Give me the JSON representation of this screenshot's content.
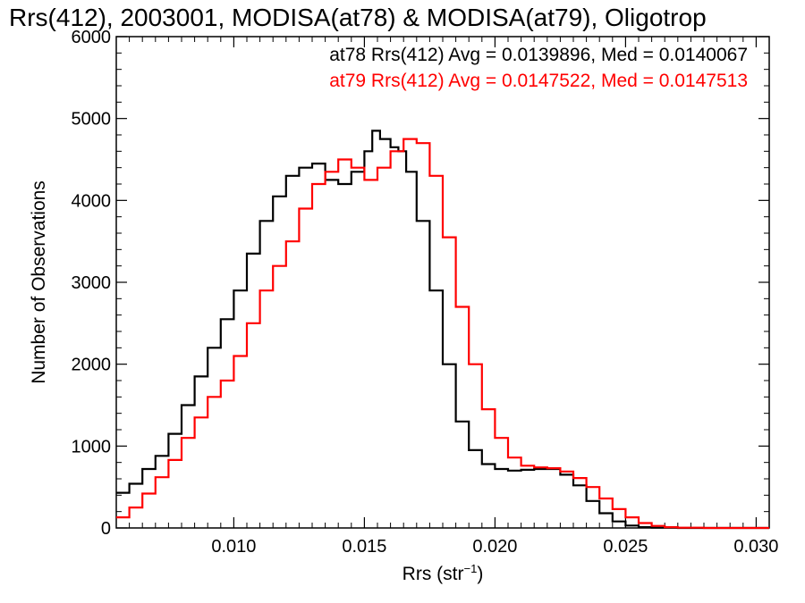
{
  "chart_data": {
    "type": "line",
    "title": "Rrs(412), 2003001, MODISA(at78) & MODISA(at79), Oligotrop",
    "xlabel": "Rrs (str",
    "xlabel_sup": "−1",
    "xlabel_close": ")",
    "ylabel": "Number of Observations",
    "xlim": [
      0.0055,
      0.0305
    ],
    "ylim": [
      0,
      6000
    ],
    "x_ticks": [
      0.01,
      0.015,
      0.02,
      0.025,
      0.03
    ],
    "x_tick_labels": [
      "0.010",
      "0.015",
      "0.020",
      "0.025",
      "0.030"
    ],
    "y_ticks": [
      0,
      1000,
      2000,
      3000,
      4000,
      5000,
      6000
    ],
    "y_tick_labels": [
      "0",
      "1000",
      "2000",
      "3000",
      "4000",
      "5000",
      "6000"
    ],
    "legend_position": "top-right",
    "series": [
      {
        "name": "at78 Rrs(412) Avg = 0.0139896, Med = 0.0140067",
        "color": "#000000",
        "points": [
          [
            0.0055,
            430
          ],
          [
            0.006,
            540
          ],
          [
            0.0065,
            720
          ],
          [
            0.007,
            880
          ],
          [
            0.0075,
            1150
          ],
          [
            0.008,
            1500
          ],
          [
            0.0085,
            1850
          ],
          [
            0.009,
            2200
          ],
          [
            0.0095,
            2550
          ],
          [
            0.01,
            2900
          ],
          [
            0.0105,
            3350
          ],
          [
            0.011,
            3750
          ],
          [
            0.0115,
            4050
          ],
          [
            0.012,
            4300
          ],
          [
            0.0125,
            4400
          ],
          [
            0.013,
            4450
          ],
          [
            0.0135,
            4250
          ],
          [
            0.014,
            4200
          ],
          [
            0.0145,
            4350
          ],
          [
            0.015,
            4600
          ],
          [
            0.0153,
            4850
          ],
          [
            0.0156,
            4750
          ],
          [
            0.016,
            4650
          ],
          [
            0.0163,
            4600
          ],
          [
            0.0166,
            4350
          ],
          [
            0.017,
            3750
          ],
          [
            0.0175,
            2900
          ],
          [
            0.018,
            2000
          ],
          [
            0.0185,
            1300
          ],
          [
            0.019,
            950
          ],
          [
            0.0195,
            780
          ],
          [
            0.02,
            720
          ],
          [
            0.0205,
            700
          ],
          [
            0.021,
            710
          ],
          [
            0.0215,
            720
          ],
          [
            0.022,
            720
          ],
          [
            0.0225,
            650
          ],
          [
            0.023,
            520
          ],
          [
            0.0235,
            330
          ],
          [
            0.024,
            180
          ],
          [
            0.0245,
            80
          ],
          [
            0.025,
            30
          ],
          [
            0.0255,
            10
          ],
          [
            0.026,
            3
          ],
          [
            0.027,
            0
          ],
          [
            0.0305,
            0
          ]
        ]
      },
      {
        "name": "at79 Rrs(412) Avg = 0.0147522, Med = 0.0147513",
        "color": "#ff0000",
        "points": [
          [
            0.0055,
            130
          ],
          [
            0.006,
            250
          ],
          [
            0.0065,
            420
          ],
          [
            0.007,
            620
          ],
          [
            0.0075,
            830
          ],
          [
            0.008,
            1100
          ],
          [
            0.0085,
            1350
          ],
          [
            0.009,
            1600
          ],
          [
            0.0095,
            1800
          ],
          [
            0.01,
            2100
          ],
          [
            0.0105,
            2500
          ],
          [
            0.011,
            2900
          ],
          [
            0.0115,
            3200
          ],
          [
            0.012,
            3500
          ],
          [
            0.0125,
            3900
          ],
          [
            0.013,
            4200
          ],
          [
            0.0135,
            4350
          ],
          [
            0.014,
            4500
          ],
          [
            0.0145,
            4400
          ],
          [
            0.015,
            4250
          ],
          [
            0.0155,
            4400
          ],
          [
            0.016,
            4600
          ],
          [
            0.0165,
            4750
          ],
          [
            0.017,
            4700
          ],
          [
            0.0175,
            4300
          ],
          [
            0.018,
            3550
          ],
          [
            0.0185,
            2700
          ],
          [
            0.019,
            2000
          ],
          [
            0.0195,
            1450
          ],
          [
            0.02,
            1100
          ],
          [
            0.0205,
            860
          ],
          [
            0.021,
            760
          ],
          [
            0.0215,
            740
          ],
          [
            0.022,
            730
          ],
          [
            0.0225,
            690
          ],
          [
            0.023,
            610
          ],
          [
            0.0235,
            500
          ],
          [
            0.024,
            360
          ],
          [
            0.0245,
            230
          ],
          [
            0.025,
            130
          ],
          [
            0.0255,
            60
          ],
          [
            0.026,
            25
          ],
          [
            0.0265,
            10
          ],
          [
            0.027,
            3
          ],
          [
            0.028,
            0
          ],
          [
            0.0305,
            0
          ]
        ]
      }
    ]
  }
}
